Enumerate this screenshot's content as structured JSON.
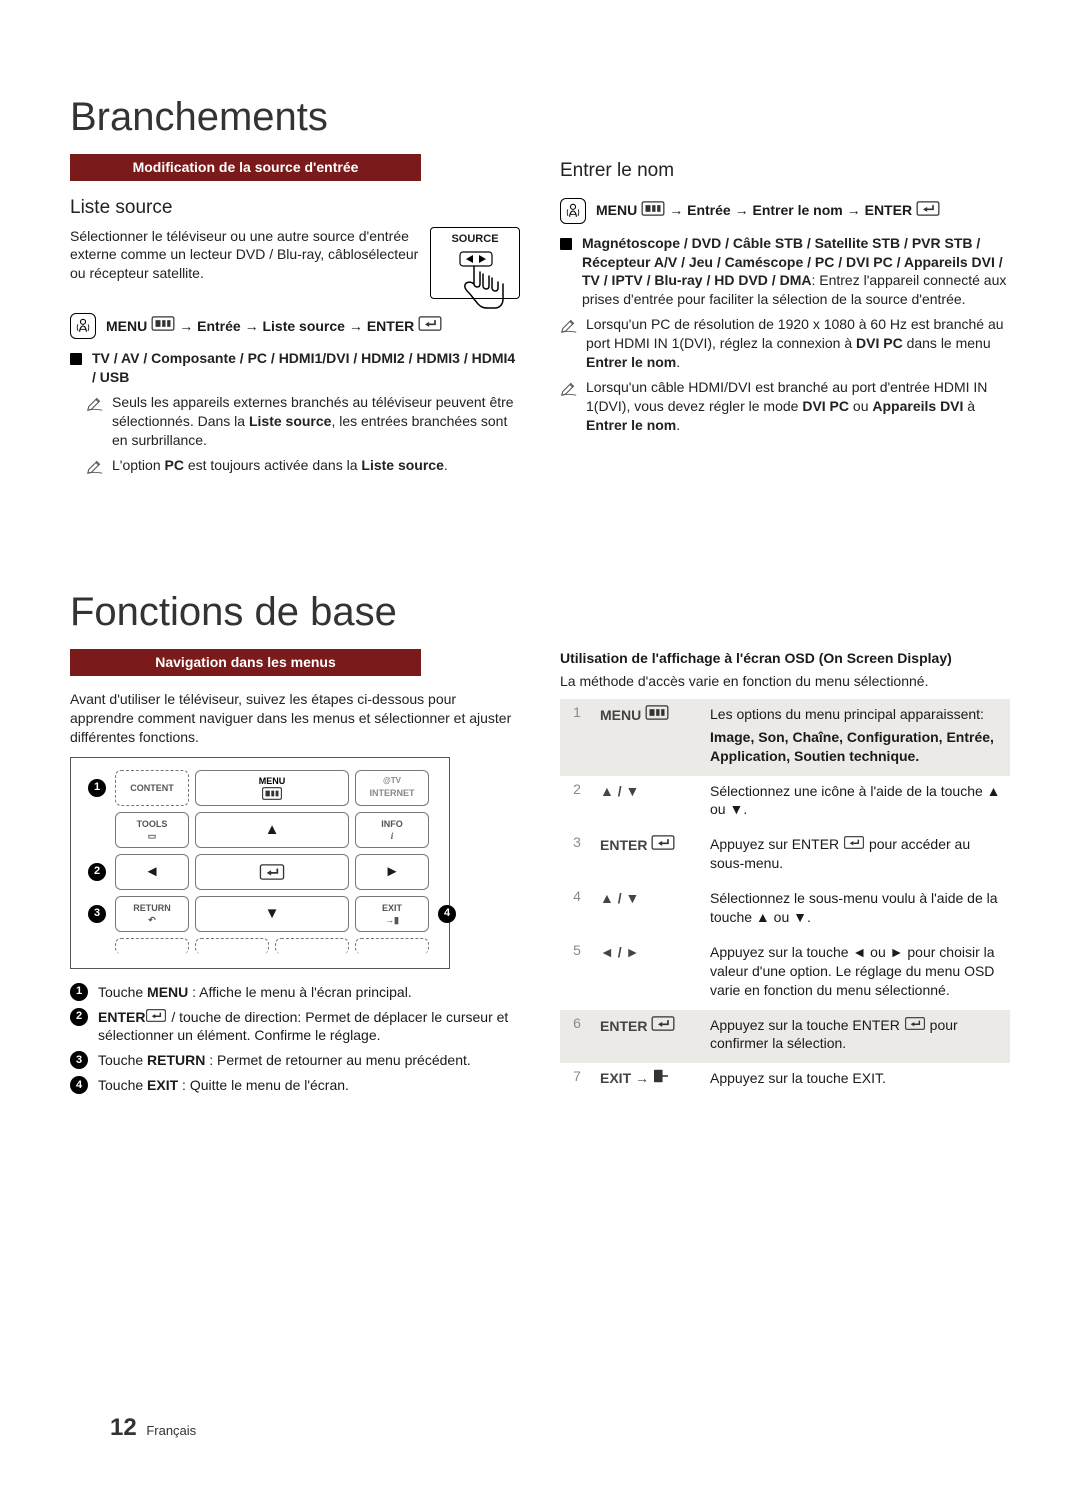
{
  "page": {
    "number": "12",
    "lang": "Français"
  },
  "colors": {
    "bar_bg": "#7a1a1a",
    "bar_fg": "#ffffff",
    "stepnum": "#8a8a8a",
    "shade": "#eceae7"
  },
  "branchements": {
    "title": "Branchements",
    "bar": "Modification de la source d'entrée",
    "liste_source": {
      "heading": "Liste source",
      "intro": "Sélectionner le téléviseur ou une autre source d'entrée externe comme un lecteur DVD / Blu-ray, câblosélecteur ou récepteur satellite.",
      "source_label": "SOURCE",
      "path_menu": "MENU",
      "path_mid": "→ Entrée → Liste source →",
      "path_enter": "ENTER",
      "inputs": "TV / AV / Composante / PC / HDMI1/DVI / HDMI2 / HDMI3 / HDMI4 / USB",
      "note1_a": "Seuls les appareils externes branchés au téléviseur peuvent être sélectionnés. Dans la ",
      "note1_b": "Liste source",
      "note1_c": ", les entrées branchées sont en surbrillance.",
      "note2_a": "L'option ",
      "note2_b": "PC",
      "note2_c": " est toujours activée dans la ",
      "note2_d": "Liste source",
      "note2_e": "."
    },
    "entrer": {
      "heading": "Entrer le nom",
      "path_menu": "MENU",
      "path_mid": "→ Entrée → Entrer le nom →",
      "path_enter": "ENTER",
      "devices_a": "Magnétoscope / DVD / Câble STB / Satellite STB / PVR STB / Récepteur A/V / Jeu / Caméscope / PC / DVI PC / Appareils DVI / TV / IPTV / Blu-ray / HD DVD / DMA",
      "devices_b": ": Entrez l'appareil connecté aux prises d'entrée pour faciliter la sélection de la source d'entrée.",
      "note1_a": "Lorsqu'un PC de résolution de 1920 x 1080 à 60 Hz est branché au port HDMI IN 1(DVI), réglez la connexion à ",
      "note1_b": "DVI PC",
      "note1_c": " dans le menu ",
      "note1_d": "Entrer le nom",
      "note1_e": ".",
      "note2_a": "Lorsqu'un câble HDMI/DVI est branché au port d'entrée HDMI IN 1(DVI), vous devez régler le mode ",
      "note2_b": "DVI PC",
      "note2_c": " ou ",
      "note2_d": "Appareils DVI",
      "note2_e": " à ",
      "note2_f": "Entrer le nom",
      "note2_g": "."
    }
  },
  "fonctions": {
    "title": "Fonctions de base",
    "bar": "Navigation dans les menus",
    "intro": "Avant d'utiliser le téléviseur, suivez les étapes ci-dessous pour apprendre comment naviguer dans les menus et sélectionner et ajuster différentes fonctions.",
    "remote": {
      "btn_content": "CONTENT",
      "btn_menu": "MENU",
      "btn_tv": "@TV",
      "btn_internet": "INTERNET",
      "btn_tools": "TOOLS",
      "btn_info": "INFO",
      "btn_return": "RETURN",
      "btn_exit": "EXIT"
    },
    "legend": {
      "l1_a": "Touche ",
      "l1_b": "MENU",
      "l1_c": " : Affiche le menu à l'écran principal.",
      "l2_a": "ENTER",
      "l2_b": " / touche de direction: Permet de déplacer le curseur et sélectionner un élément. Confirme le réglage.",
      "l3_a": "Touche ",
      "l3_b": "RETURN",
      "l3_c": " : Permet de retourner au menu précédent.",
      "l4_a": "Touche ",
      "l4_b": "EXIT",
      "l4_c": " : Quitte le menu de l'écran."
    },
    "osd": {
      "title": "Utilisation de l'affichage à l'écran OSD (On Screen Display)",
      "subtitle": "La méthode d'accès varie en fonction du menu sélectionné.",
      "steps": [
        {
          "num": "1",
          "key": "MENU",
          "icon": "menu",
          "text_a": "Les options du menu principal apparaissent:",
          "text_b": "Image, Son, Chaîne, Configuration, Entrée, Application, Soutien technique."
        },
        {
          "num": "2",
          "key": "▲ / ▼",
          "icon": "",
          "text_a": "Sélectionnez une icône à l'aide de la touche ▲ ou ▼.",
          "text_b": ""
        },
        {
          "num": "3",
          "key": "ENTER",
          "icon": "enter",
          "text_a": "Appuyez sur ENTER      pour accéder au sous-menu.",
          "text_b": ""
        },
        {
          "num": "4",
          "key": "▲ / ▼",
          "icon": "",
          "text_a": "Sélectionnez le sous-menu voulu à l'aide de la touche ▲ ou ▼.",
          "text_b": ""
        },
        {
          "num": "5",
          "key": "◄ / ►",
          "icon": "",
          "text_a": "Appuyez sur la touche ◄ ou ► pour choisir la valeur d'une option. Le réglage du menu OSD varie en fonction du menu sélectionné.",
          "text_b": ""
        },
        {
          "num": "6",
          "key": "ENTER",
          "icon": "enter",
          "text_a": "Appuyez sur la touche ENTER      pour confirmer la sélection.",
          "text_b": ""
        },
        {
          "num": "7",
          "key": "EXIT →",
          "icon": "exit",
          "text_a": "Appuyez sur la touche EXIT.",
          "text_b": ""
        }
      ]
    }
  }
}
